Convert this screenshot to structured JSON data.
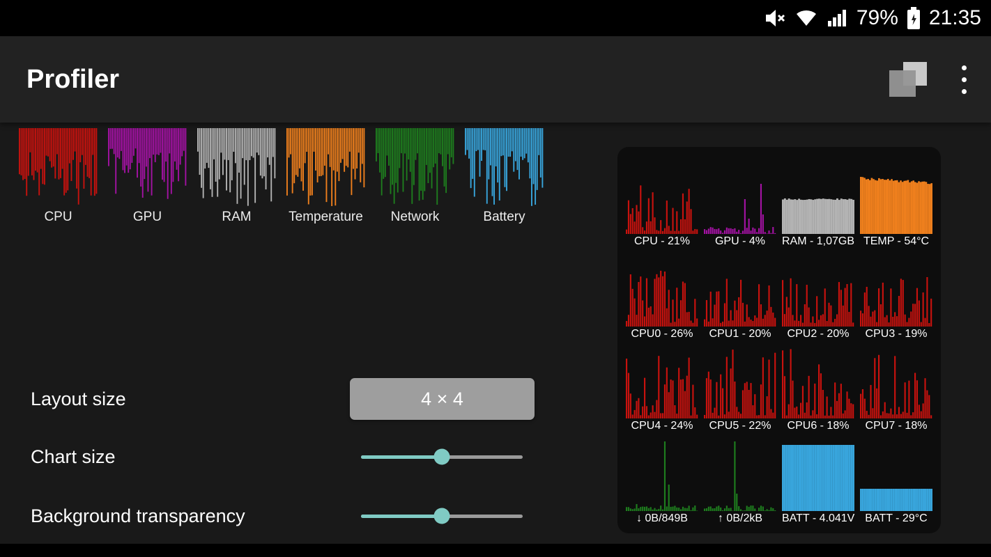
{
  "status_bar": {
    "time": "21:35",
    "battery": "79%",
    "icons": [
      "mute-icon",
      "wifi-icon",
      "signal-icon",
      "battery-icon"
    ]
  },
  "app_bar": {
    "title": "Profiler",
    "actions": [
      "overlay-widget-icon",
      "overflow-menu-icon"
    ]
  },
  "chart_previews": [
    {
      "id": "cpu",
      "label": "CPU",
      "color": "#c8120e",
      "chart": {
        "type": "bars",
        "seed": 11,
        "count": 44,
        "min": 0.28,
        "max": 1.0,
        "pow": 1.25
      }
    },
    {
      "id": "gpu",
      "label": "GPU",
      "color": "#a312a3",
      "chart": {
        "type": "bars",
        "seed": 27,
        "count": 44,
        "min": 0.26,
        "max": 1.0,
        "pow": 1.3
      }
    },
    {
      "id": "ram",
      "label": "RAM",
      "color": "#b3b3b3",
      "chart": {
        "type": "bars",
        "seed": 35,
        "count": 44,
        "min": 0.3,
        "max": 1.0,
        "pow": 1.25
      }
    },
    {
      "id": "temperature",
      "label": "Temperature",
      "color": "#ee7f1d",
      "chart": {
        "type": "bars",
        "seed": 44,
        "count": 44,
        "min": 0.3,
        "max": 1.0,
        "pow": 1.2
      }
    },
    {
      "id": "network",
      "label": "Network",
      "color": "#1e7d1e",
      "chart": {
        "type": "bars",
        "seed": 52,
        "count": 44,
        "min": 0.32,
        "max": 1.0,
        "pow": 1.2
      }
    },
    {
      "id": "battery",
      "label": "Battery",
      "color": "#38a5dc",
      "chart": {
        "type": "bars",
        "seed": 66,
        "count": 44,
        "min": 0.28,
        "max": 1.0,
        "pow": 1.25
      }
    }
  ],
  "settings": {
    "layout_size": {
      "label": "Layout size",
      "value": "4 × 4"
    },
    "chart_size": {
      "label": "Chart size",
      "value_percent": 50
    },
    "background_transparency": {
      "label": "Background transparency",
      "value_percent": 50
    },
    "accent_color": "#80cbc4"
  },
  "widget_preview": {
    "tiles": [
      {
        "label": "CPU - 21%",
        "color": "#c8120e",
        "chart": {
          "type": "bars",
          "seed": 101,
          "count": 36,
          "min": 0.04,
          "max": 0.74,
          "pow": 1.7
        }
      },
      {
        "label": "GPU - 4%",
        "color": "#a312a3",
        "chart": {
          "type": "spikes",
          "seed": 102,
          "count": 36,
          "base": 0.05,
          "spikes": [
            [
              0.58,
              0.5
            ],
            [
              0.62,
              0.22
            ],
            [
              0.8,
              0.72
            ],
            [
              0.83,
              0.28
            ]
          ]
        }
      },
      {
        "label": "RAM - 1,07GB",
        "color": "#b3b3b3",
        "chart": {
          "type": "solid",
          "seed": 103,
          "count": 36,
          "level": 0.5,
          "noise": 0.012
        }
      },
      {
        "label": "TEMP - 54°C",
        "color": "#ee7f1d",
        "chart": {
          "type": "solid",
          "seed": 104,
          "count": 40,
          "level": 0.8,
          "noise": 0.02,
          "slope": -0.07
        }
      },
      {
        "label": "CPU0 - 26%",
        "color": "#c8120e",
        "chart": {
          "type": "bars",
          "seed": 105,
          "count": 36,
          "min": 0.05,
          "max": 0.82,
          "pow": 1.6
        }
      },
      {
        "label": "CPU1 - 20%",
        "color": "#c8120e",
        "chart": {
          "type": "bars",
          "seed": 106,
          "count": 36,
          "min": 0.05,
          "max": 0.7,
          "pow": 1.6
        }
      },
      {
        "label": "CPU2 - 20%",
        "color": "#c8120e",
        "chart": {
          "type": "bars",
          "seed": 107,
          "count": 36,
          "min": 0.05,
          "max": 0.72,
          "pow": 1.6
        }
      },
      {
        "label": "CPU3 - 19%",
        "color": "#c8120e",
        "chart": {
          "type": "bars",
          "seed": 108,
          "count": 36,
          "min": 0.05,
          "max": 0.75,
          "pow": 1.6
        }
      },
      {
        "label": "CPU4 - 24%",
        "color": "#c8120e",
        "chart": {
          "type": "bars",
          "seed": 109,
          "count": 36,
          "min": 0.04,
          "max": 1.0,
          "pow": 2.2
        }
      },
      {
        "label": "CPU5 - 22%",
        "color": "#c8120e",
        "chart": {
          "type": "bars",
          "seed": 110,
          "count": 36,
          "min": 0.04,
          "max": 1.0,
          "pow": 2.2
        }
      },
      {
        "label": "CPU6 - 18%",
        "color": "#c8120e",
        "chart": {
          "type": "bars",
          "seed": 111,
          "count": 36,
          "min": 0.04,
          "max": 1.0,
          "pow": 2.4
        }
      },
      {
        "label": "CPU7 - 18%",
        "color": "#c8120e",
        "chart": {
          "type": "bars",
          "seed": 112,
          "count": 36,
          "min": 0.04,
          "max": 1.0,
          "pow": 2.3
        }
      },
      {
        "label": "↓ 0B/849B",
        "color": "#1e7d1e",
        "chart": {
          "type": "spikes",
          "seed": 113,
          "count": 36,
          "base": 0.04,
          "spikes": [
            [
              0.55,
              1.0
            ],
            [
              0.6,
              0.38
            ],
            [
              0.15,
              0.1
            ]
          ]
        }
      },
      {
        "label": "↑ 0B/2kB",
        "color": "#1e7d1e",
        "chart": {
          "type": "spikes",
          "seed": 114,
          "count": 36,
          "base": 0.04,
          "spikes": [
            [
              0.42,
              1.0
            ],
            [
              0.46,
              0.25
            ]
          ]
        }
      },
      {
        "label": "BATT - 4.041V",
        "color": "#38a5dc",
        "chart": {
          "type": "solid",
          "seed": 115,
          "count": 36,
          "level": 0.95,
          "noise": 0.0
        }
      },
      {
        "label": "BATT - 29°C",
        "color": "#38a5dc",
        "chart": {
          "type": "solid",
          "seed": 116,
          "count": 36,
          "level": 0.32,
          "noise": 0.0
        }
      }
    ]
  }
}
